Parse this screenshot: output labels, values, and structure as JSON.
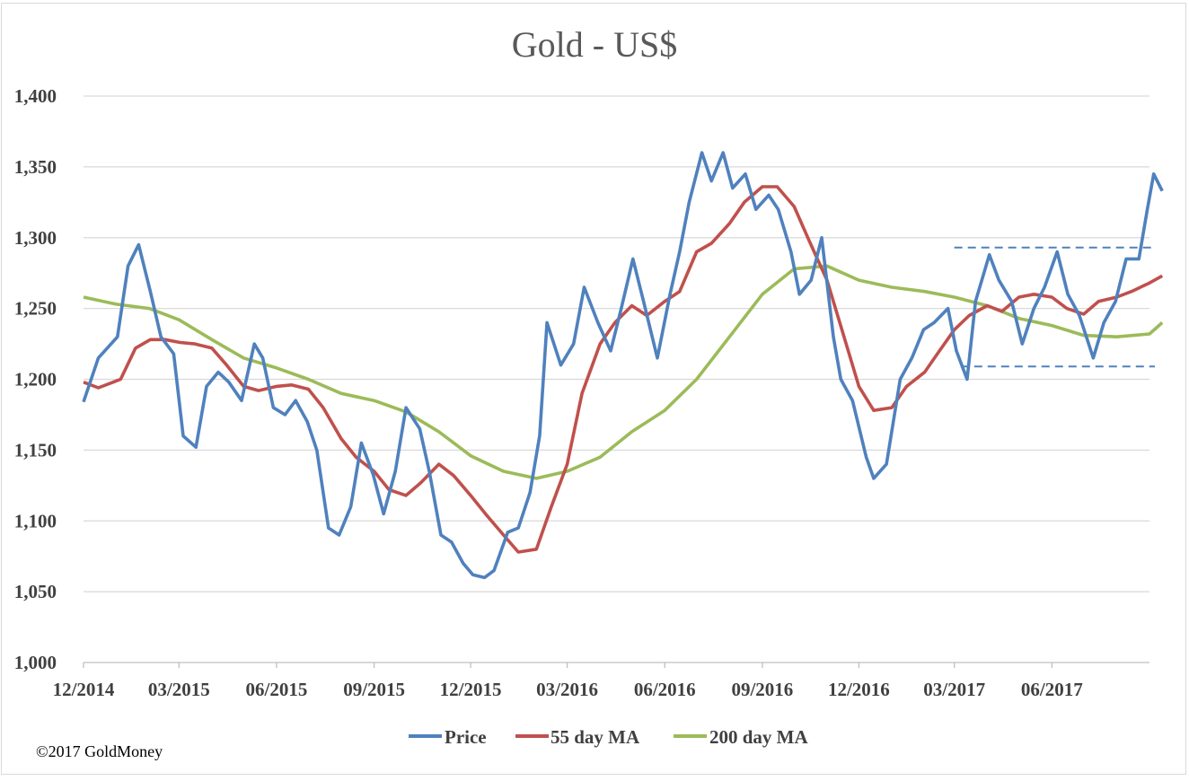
{
  "copyright": "©2017 GoldMoney",
  "chart_data": {
    "type": "line",
    "title": "Gold - US$",
    "xlabel": "",
    "ylabel": "",
    "ylim": [
      1000,
      1400
    ],
    "yticks": [
      1000,
      1050,
      1100,
      1150,
      1200,
      1250,
      1300,
      1350,
      1400
    ],
    "ytick_labels": [
      "1,000",
      "1,050",
      "1,100",
      "1,150",
      "1,200",
      "1,250",
      "1,300",
      "1,350",
      "1,400"
    ],
    "xlim": [
      "2014-12-01",
      "2017-09-01"
    ],
    "xticks": [
      "12/2014",
      "03/2015",
      "06/2015",
      "09/2015",
      "12/2015",
      "03/2016",
      "06/2016",
      "09/2016",
      "12/2016",
      "03/2017",
      "06/2017"
    ],
    "grid": true,
    "legend_position": "bottom",
    "colors": {
      "Price": "#4f81bd",
      "55 day MA": "#c0504d",
      "200 day MA": "#9bbb59",
      "dashed": "#4f81bd"
    },
    "series": [
      {
        "name": "Price",
        "x": [
          "2014-12-01",
          "2014-12-15",
          "2015-01-02",
          "2015-01-12",
          "2015-01-22",
          "2015-02-02",
          "2015-02-12",
          "2015-02-24",
          "2015-03-05",
          "2015-03-17",
          "2015-03-27",
          "2015-04-07",
          "2015-04-17",
          "2015-04-29",
          "2015-05-11",
          "2015-05-19",
          "2015-05-29",
          "2015-06-09",
          "2015-06-19",
          "2015-06-30",
          "2015-07-09",
          "2015-07-20",
          "2015-07-30",
          "2015-08-10",
          "2015-08-20",
          "2015-08-31",
          "2015-09-10",
          "2015-09-21",
          "2015-10-01",
          "2015-10-14",
          "2015-10-23",
          "2015-11-03",
          "2015-11-13",
          "2015-11-24",
          "2015-12-03",
          "2015-12-14",
          "2015-12-23",
          "2016-01-05",
          "2016-01-15",
          "2016-01-26",
          "2016-02-04",
          "2016-02-11",
          "2016-02-24",
          "2016-03-07",
          "2016-03-17",
          "2016-03-30",
          "2016-04-11",
          "2016-04-21",
          "2016-05-02",
          "2016-05-12",
          "2016-05-25",
          "2016-06-06",
          "2016-06-15",
          "2016-06-24",
          "2016-07-06",
          "2016-07-15",
          "2016-07-26",
          "2016-08-04",
          "2016-08-16",
          "2016-08-26",
          "2016-09-07",
          "2016-09-16",
          "2016-09-28",
          "2016-10-06",
          "2016-10-17",
          "2016-10-27",
          "2016-11-07",
          "2016-11-14",
          "2016-11-25",
          "2016-12-08",
          "2016-12-15",
          "2016-12-27",
          "2017-01-09",
          "2017-01-20",
          "2017-01-31",
          "2017-02-10",
          "2017-02-23",
          "2017-03-03",
          "2017-03-13",
          "2017-03-21",
          "2017-04-03",
          "2017-04-12",
          "2017-04-24",
          "2017-05-04",
          "2017-05-15",
          "2017-05-25",
          "2017-06-06",
          "2017-06-16",
          "2017-06-27",
          "2017-07-10",
          "2017-07-20",
          "2017-07-31",
          "2017-08-10",
          "2017-08-22",
          "2017-08-30",
          "2017-09-05",
          "2017-09-13"
        ],
        "values": [
          1184,
          1215,
          1230,
          1280,
          1295,
          1262,
          1230,
          1218,
          1160,
          1152,
          1195,
          1205,
          1198,
          1185,
          1225,
          1215,
          1180,
          1175,
          1185,
          1170,
          1150,
          1095,
          1090,
          1110,
          1155,
          1133,
          1105,
          1135,
          1180,
          1165,
          1135,
          1090,
          1085,
          1070,
          1062,
          1060,
          1065,
          1092,
          1095,
          1120,
          1160,
          1240,
          1210,
          1225,
          1265,
          1240,
          1220,
          1250,
          1285,
          1255,
          1215,
          1260,
          1290,
          1325,
          1360,
          1340,
          1360,
          1335,
          1345,
          1320,
          1330,
          1320,
          1290,
          1260,
          1270,
          1300,
          1230,
          1200,
          1185,
          1145,
          1130,
          1140,
          1200,
          1215,
          1235,
          1240,
          1250,
          1220,
          1200,
          1255,
          1288,
          1270,
          1255,
          1225,
          1250,
          1265,
          1290,
          1260,
          1245,
          1215,
          1240,
          1255,
          1285,
          1285,
          1320,
          1345,
          1333
        ]
      },
      {
        "name": "55 day MA",
        "x": [
          "2014-12-01",
          "2014-12-15",
          "2015-01-05",
          "2015-01-19",
          "2015-02-02",
          "2015-02-16",
          "2015-03-02",
          "2015-03-16",
          "2015-04-01",
          "2015-04-15",
          "2015-05-01",
          "2015-05-15",
          "2015-06-01",
          "2015-06-15",
          "2015-07-01",
          "2015-07-15",
          "2015-08-01",
          "2015-08-15",
          "2015-09-01",
          "2015-09-15",
          "2015-10-01",
          "2015-10-15",
          "2015-11-01",
          "2015-11-15",
          "2015-12-01",
          "2015-12-15",
          "2016-01-01",
          "2016-01-15",
          "2016-02-01",
          "2016-02-15",
          "2016-03-01",
          "2016-03-15",
          "2016-04-01",
          "2016-04-15",
          "2016-05-01",
          "2016-05-15",
          "2016-06-01",
          "2016-06-15",
          "2016-07-01",
          "2016-07-15",
          "2016-08-01",
          "2016-08-15",
          "2016-09-01",
          "2016-09-15",
          "2016-10-01",
          "2016-10-15",
          "2016-11-01",
          "2016-11-15",
          "2016-12-01",
          "2016-12-15",
          "2017-01-01",
          "2017-01-15",
          "2017-02-01",
          "2017-02-15",
          "2017-03-01",
          "2017-03-15",
          "2017-04-01",
          "2017-04-15",
          "2017-05-01",
          "2017-05-15",
          "2017-06-01",
          "2017-06-15",
          "2017-07-01",
          "2017-07-15",
          "2017-08-01",
          "2017-08-15",
          "2017-09-01",
          "2017-09-13"
        ],
        "values": [
          1198,
          1194,
          1200,
          1222,
          1228,
          1228,
          1226,
          1225,
          1222,
          1210,
          1195,
          1192,
          1195,
          1196,
          1193,
          1180,
          1158,
          1145,
          1135,
          1122,
          1118,
          1127,
          1140,
          1132,
          1118,
          1105,
          1090,
          1078,
          1080,
          1110,
          1140,
          1190,
          1225,
          1240,
          1252,
          1245,
          1255,
          1262,
          1290,
          1296,
          1310,
          1325,
          1336,
          1336,
          1322,
          1298,
          1270,
          1235,
          1195,
          1178,
          1180,
          1195,
          1205,
          1220,
          1235,
          1245,
          1252,
          1248,
          1258,
          1260,
          1258,
          1250,
          1246,
          1255,
          1258,
          1262,
          1268,
          1273
        ]
      },
      {
        "name": "200 day MA",
        "x": [
          "2014-12-01",
          "2015-01-01",
          "2015-02-01",
          "2015-03-01",
          "2015-04-01",
          "2015-05-01",
          "2015-06-01",
          "2015-07-01",
          "2015-08-01",
          "2015-09-01",
          "2015-10-01",
          "2015-11-01",
          "2015-12-01",
          "2016-01-01",
          "2016-02-01",
          "2016-03-01",
          "2016-04-01",
          "2016-05-01",
          "2016-06-01",
          "2016-07-01",
          "2016-08-01",
          "2016-09-01",
          "2016-10-01",
          "2016-11-01",
          "2016-12-01",
          "2017-01-01",
          "2017-02-01",
          "2017-03-01",
          "2017-04-01",
          "2017-05-01",
          "2017-06-01",
          "2017-07-01",
          "2017-08-01",
          "2017-09-01",
          "2017-09-13"
        ],
        "values": [
          1258,
          1253,
          1250,
          1242,
          1228,
          1215,
          1208,
          1200,
          1190,
          1185,
          1177,
          1163,
          1146,
          1135,
          1130,
          1135,
          1145,
          1163,
          1178,
          1200,
          1230,
          1260,
          1278,
          1280,
          1270,
          1265,
          1262,
          1258,
          1252,
          1243,
          1238,
          1231,
          1230,
          1232,
          1240
        ]
      }
    ],
    "reference_lines": [
      {
        "style": "dashed",
        "value": 1293,
        "from": "2017-03-01",
        "to": "2017-09-30"
      },
      {
        "style": "dashed",
        "value": 1209,
        "from": "2017-03-07",
        "to": "2017-09-30"
      }
    ]
  }
}
